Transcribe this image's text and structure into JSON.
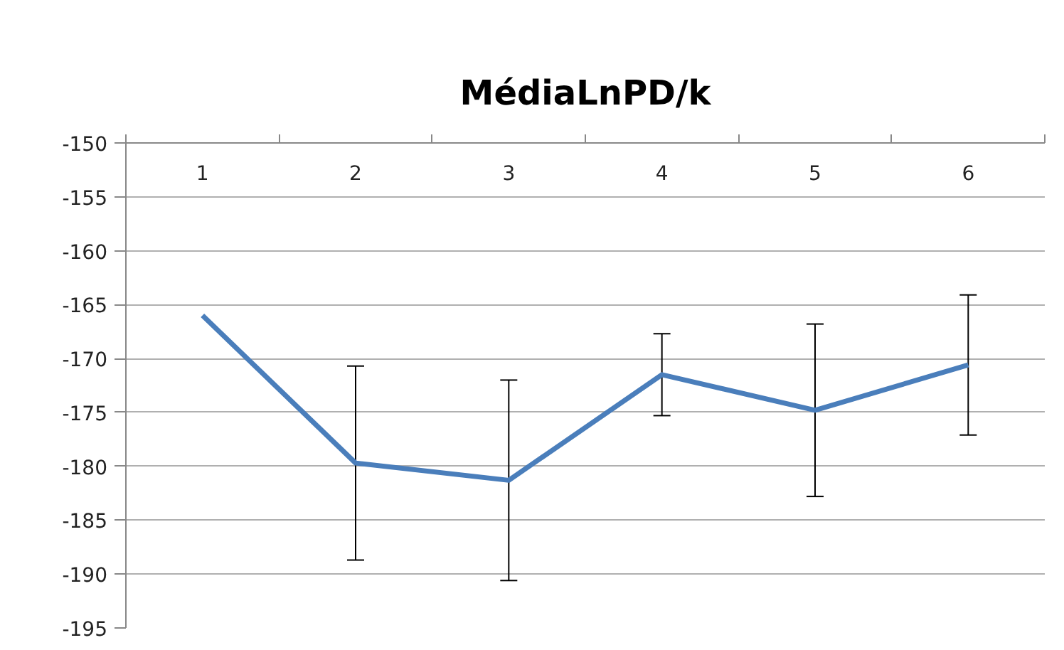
{
  "chart_data": {
    "type": "line",
    "title": "MédiaLnPD/k",
    "categories": [
      "1",
      "2",
      "3",
      "4",
      "5",
      "6"
    ],
    "series": [
      {
        "color": "#4a7ebb",
        "values": [
          -166.0,
          -179.7,
          -181.3,
          -171.5,
          -174.8,
          -170.6
        ],
        "errors": [
          null,
          9.0,
          9.3,
          3.8,
          8.0,
          6.5
        ]
      }
    ],
    "ylim": [
      -195,
      -150
    ],
    "yticks": [
      -195,
      -190,
      -185,
      -180,
      -175,
      -170,
      -165,
      -160,
      -155,
      -150
    ],
    "grid": "y",
    "marker": "none",
    "line_style": "solid"
  }
}
